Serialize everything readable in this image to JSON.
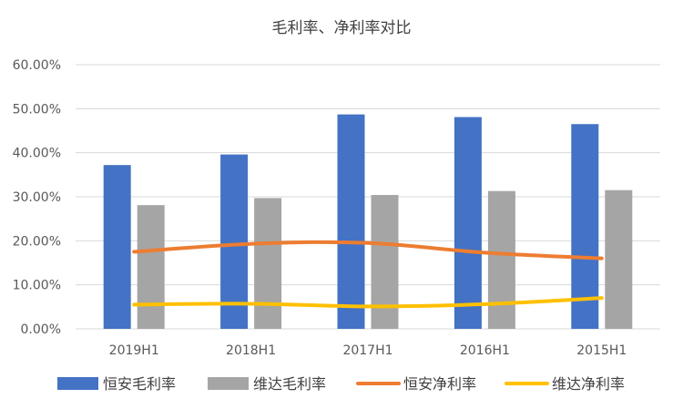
{
  "chart_data": {
    "type": "bar",
    "title": "毛利率、净利率对比",
    "categories": [
      "2019H1",
      "2018H1",
      "2017H1",
      "2016H1",
      "2015H1"
    ],
    "series": [
      {
        "name": "恒安毛利率",
        "kind": "bar",
        "color": "#4472C4",
        "values": [
          37.2,
          39.6,
          48.7,
          48.1,
          46.5
        ]
      },
      {
        "name": "维达毛利率",
        "kind": "bar",
        "color": "#A5A5A5",
        "values": [
          28.1,
          29.7,
          30.4,
          31.3,
          31.5
        ]
      },
      {
        "name": "恒安净利率",
        "kind": "line",
        "color": "#ED7D31",
        "values": [
          17.5,
          19.3,
          19.5,
          17.3,
          16.0
        ]
      },
      {
        "name": "维达净利率",
        "kind": "line",
        "color": "#FFC000",
        "values": [
          5.5,
          5.7,
          5.1,
          5.6,
          7.0
        ]
      }
    ],
    "ylim": [
      0,
      60
    ],
    "yticks": [
      "0.00%",
      "10.00%",
      "20.00%",
      "30.00%",
      "40.00%",
      "50.00%",
      "60.00%"
    ],
    "grid": true,
    "legend_position": "bottom"
  }
}
